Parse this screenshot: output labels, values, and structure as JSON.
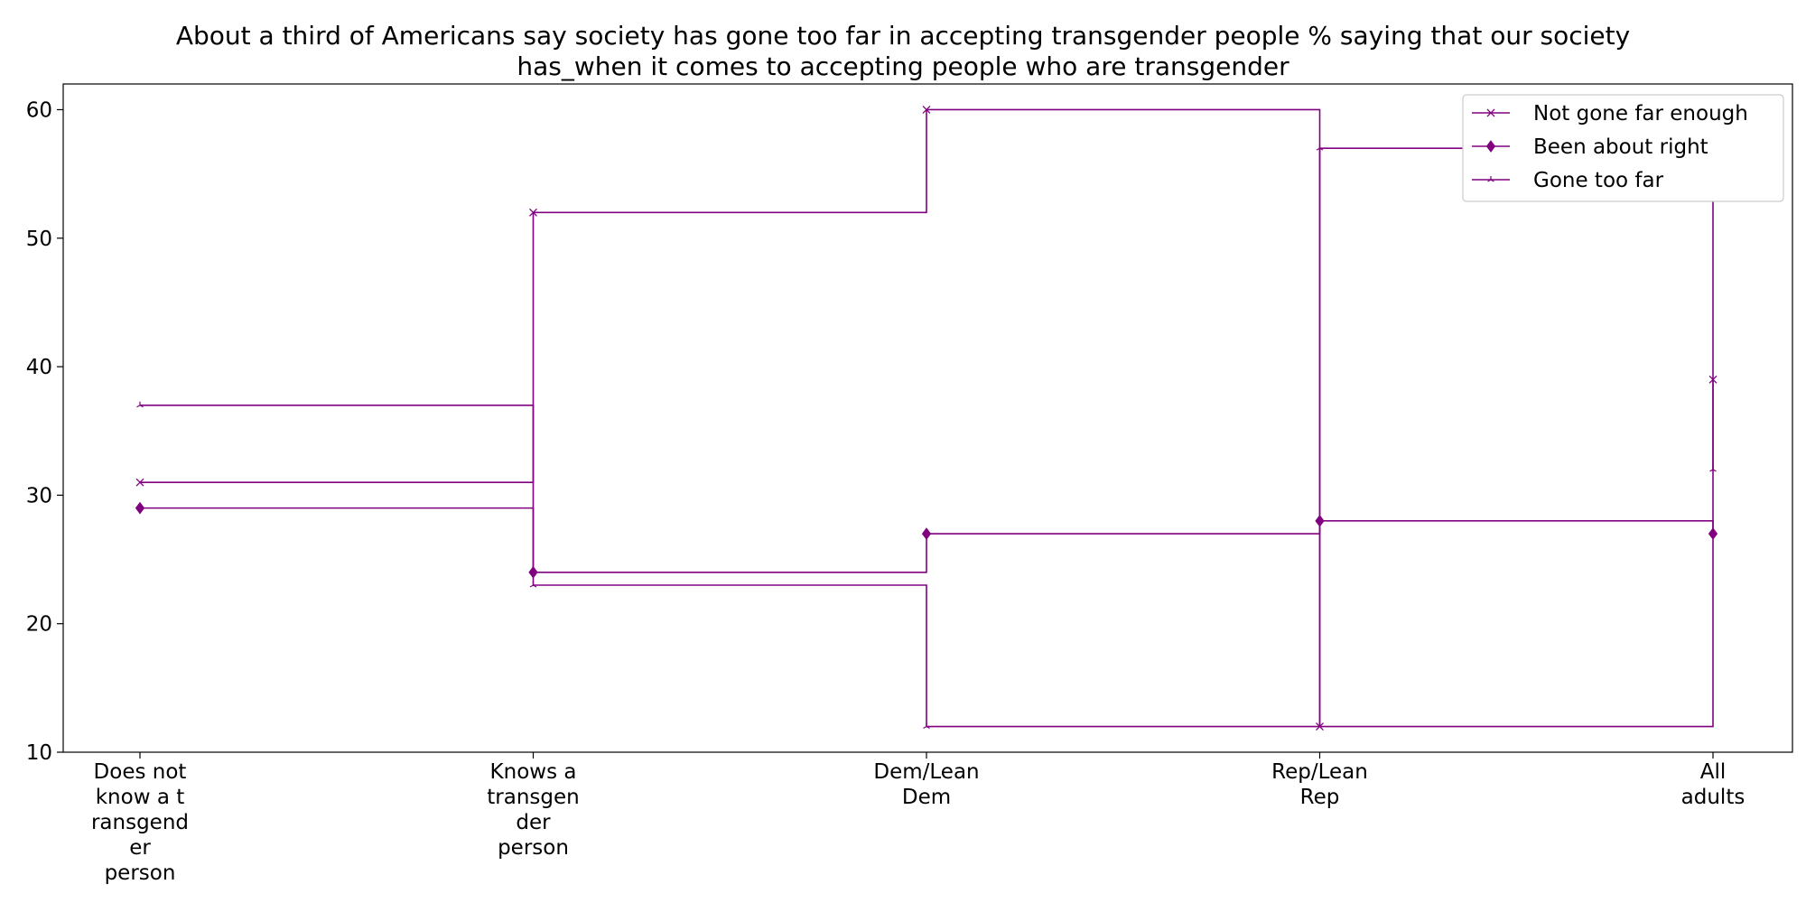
{
  "chart_data": {
    "type": "line",
    "step": "post",
    "title": "About a third of Americans say society has gone too far in accepting transgender people % saying that our society has_when it comes to accepting people who are transgender",
    "title_lines": [
      "About a third of Americans say society has gone too far in accepting transgender people % saying that our society",
      "has_when it comes to accepting people who are transgender"
    ],
    "xlabel": "",
    "ylabel": "",
    "categories": [
      "Does not know a transgender person",
      "Knows a transgender person",
      "Dem/Lean Dem",
      "Rep/Lean Rep",
      "All adults"
    ],
    "category_lines": [
      [
        "Does not",
        "know a t",
        "ransgend",
        "er",
        "person"
      ],
      [
        "Knows a",
        "transgen",
        "der",
        "person"
      ],
      [
        "Dem/Lean",
        "Dem"
      ],
      [
        "Rep/Lean",
        "Rep"
      ],
      [
        "All",
        "adults"
      ]
    ],
    "ylim": [
      10,
      62
    ],
    "yticks": [
      10,
      20,
      30,
      40,
      50,
      60
    ],
    "grid": false,
    "legend_position": "top-right",
    "color": "#800080",
    "series": [
      {
        "name": "Not gone far enough",
        "marker": "x",
        "values": [
          31,
          52,
          60,
          12,
          39
        ]
      },
      {
        "name": "Been about right",
        "marker": "diamond",
        "values": [
          29,
          24,
          27,
          28,
          27
        ]
      },
      {
        "name": "Gone too far",
        "marker": "tri",
        "values": [
          37,
          23,
          12,
          57,
          32
        ]
      }
    ]
  }
}
